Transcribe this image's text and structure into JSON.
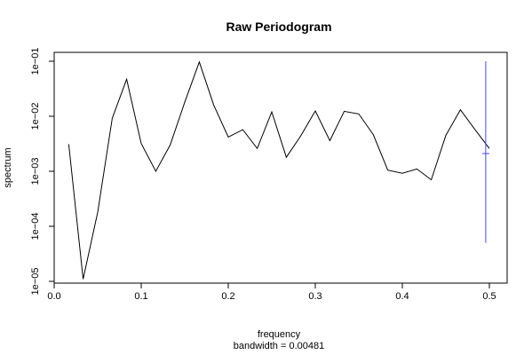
{
  "chart_data": {
    "type": "line",
    "title": "Raw Periodogram",
    "xlabel": "frequency",
    "subxlabel": "bandwidth = 0.00481",
    "ylabel": "spectrum",
    "y_scale": "log",
    "xlim": [
      0,
      0.5
    ],
    "ylim": [
      1e-05,
      0.1
    ],
    "x_ticks": [
      0.0,
      0.1,
      0.2,
      0.3,
      0.4,
      0.5
    ],
    "x_tick_labels": [
      "0.0",
      "0.1",
      "0.2",
      "0.3",
      "0.4",
      "0.5"
    ],
    "y_ticks": [
      1e-05,
      0.0001,
      0.001,
      0.01,
      0.1
    ],
    "y_tick_labels": [
      "1e−05",
      "1e−04",
      "1e−03",
      "1e−02",
      "1e−01"
    ],
    "line_color": "#000000",
    "ci_color": "#4444ff",
    "series": [
      {
        "x": [
          0.0167,
          0.0333,
          0.05,
          0.0667,
          0.0833,
          0.1,
          0.1167,
          0.1333,
          0.15,
          0.1667,
          0.1833,
          0.2,
          0.2167,
          0.2333,
          0.25,
          0.2667,
          0.2833,
          0.3,
          0.3167,
          0.3333,
          0.35,
          0.3667,
          0.3833,
          0.4,
          0.4167,
          0.4333,
          0.45,
          0.4667,
          0.4833,
          0.5
        ],
        "values": [
          0.0031,
          1.1e-05,
          0.00018,
          0.0092,
          0.047,
          0.0032,
          0.001,
          0.003,
          0.018,
          0.097,
          0.016,
          0.0042,
          0.0057,
          0.0026,
          0.012,
          0.0018,
          0.0044,
          0.0125,
          0.0036,
          0.0123,
          0.011,
          0.0046,
          0.00105,
          0.00092,
          0.0011,
          0.0007,
          0.0045,
          0.0131,
          0.0058,
          0.0026
        ]
      }
    ],
    "confidence_interval": {
      "x": 0.4958,
      "center": 0.0021,
      "lower": 5e-05,
      "upper": 0.1
    }
  }
}
